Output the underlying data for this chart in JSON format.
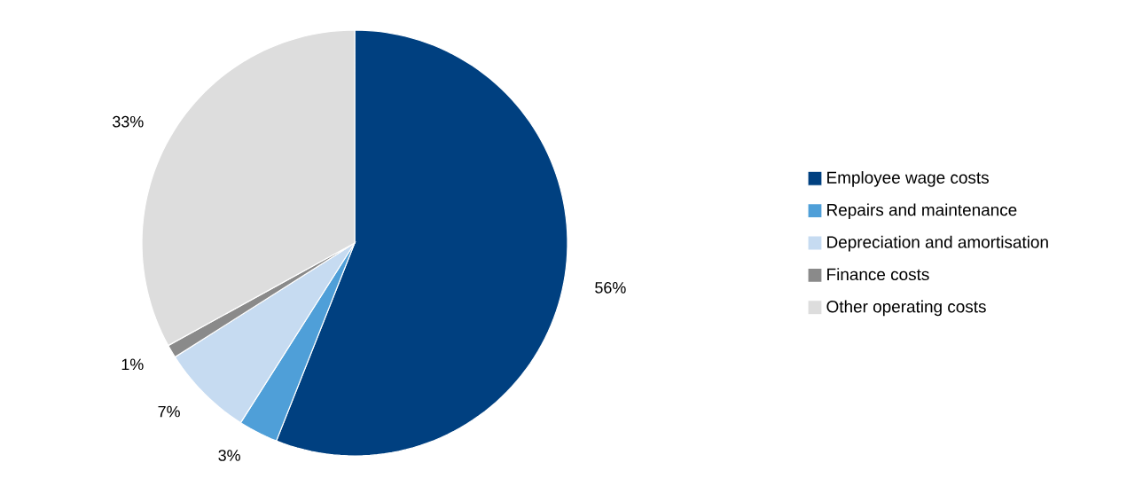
{
  "chart_data": {
    "type": "pie",
    "categories": [
      "Employee wage costs",
      "Repairs and maintenance",
      "Depreciation and amortisation",
      "Finance costs",
      "Other operating costs"
    ],
    "values": [
      56,
      3,
      7,
      1,
      33
    ],
    "colors": [
      "#004080",
      "#4f9fd8",
      "#c6dbf1",
      "#8a8a8a",
      "#dddddd"
    ],
    "value_labels": [
      "56%",
      "3%",
      "7%",
      "1%",
      "33%"
    ],
    "legend": "right"
  }
}
